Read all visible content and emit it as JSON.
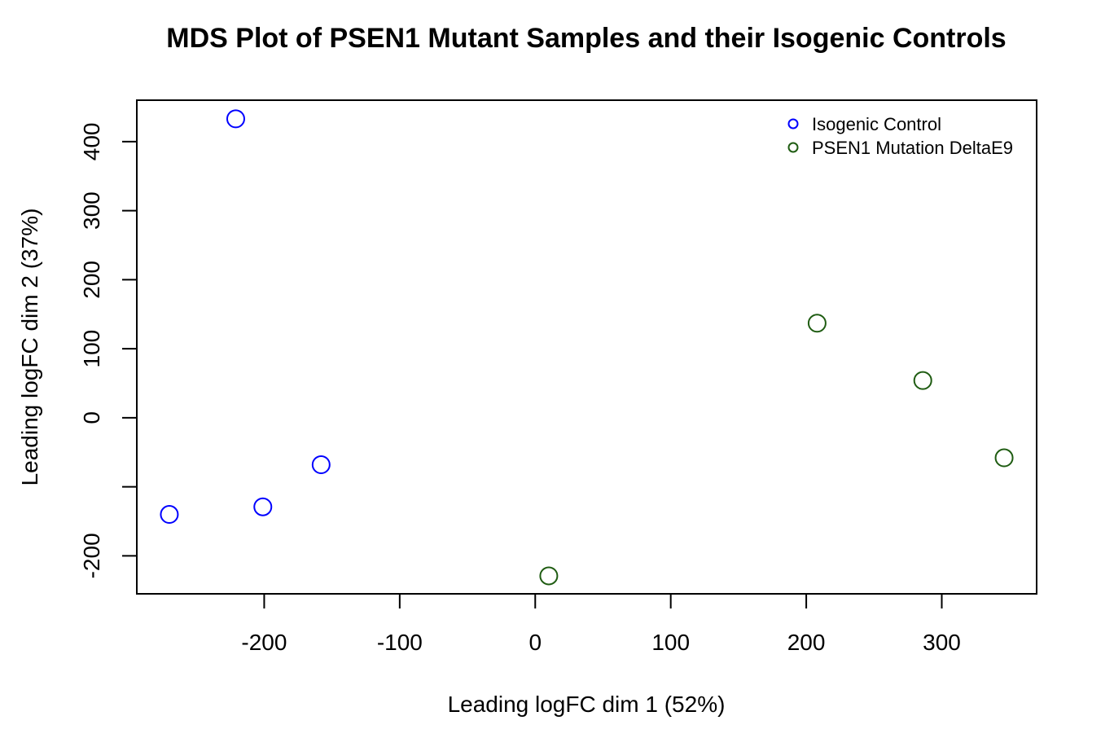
{
  "chart_data": {
    "type": "scatter",
    "title": "MDS Plot of PSEN1 Mutant Samples and their Isogenic Controls",
    "xlabel": "Leading logFC dim 1 (52%)",
    "ylabel": "Leading logFC dim 2 (37%)",
    "xlim": [
      -294,
      370
    ],
    "ylim": [
      -255,
      460
    ],
    "xticks": [
      -200,
      -100,
      0,
      100,
      200,
      300
    ],
    "xtick_labels": [
      "-200",
      "-100",
      "0",
      "100",
      "200",
      "300"
    ],
    "yticks": [
      -200,
      -100,
      0,
      100,
      200,
      300,
      400
    ],
    "ytick_labels": [
      "-200",
      "",
      "0",
      "100",
      "200",
      "300",
      "400"
    ],
    "grid": false,
    "legend_position": "top-right",
    "series": [
      {
        "name": "Isogenic Control",
        "color": "#0000ff",
        "x": [
          -221,
          -270,
          -201,
          -158
        ],
        "y": [
          433,
          -140,
          -129,
          -68
        ]
      },
      {
        "name": "PSEN1 Mutation DeltaE9",
        "color": "#1f5c12",
        "x": [
          208,
          286,
          346,
          10
        ],
        "y": [
          137,
          54,
          -58,
          -229
        ]
      }
    ]
  }
}
